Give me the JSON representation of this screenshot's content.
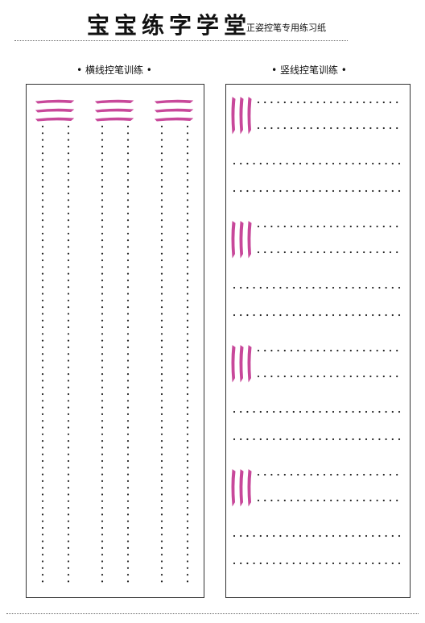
{
  "header": {
    "title": "宝宝练字学堂",
    "subtitle": "正姿控笔专用练习纸"
  },
  "sections": {
    "horizontal_label": "• 横线控笔训练 •",
    "vertical_label": "• 竖线控笔训练 •"
  },
  "colors": {
    "stroke_guide": "#c8489a",
    "dots": "#222222",
    "border": "#333333"
  },
  "practice": {
    "horizontal_columns": 3,
    "horizontal_guide_strokes_per_column": 3,
    "vertical_groups": 4,
    "vertical_guide_strokes_per_group": 3
  }
}
